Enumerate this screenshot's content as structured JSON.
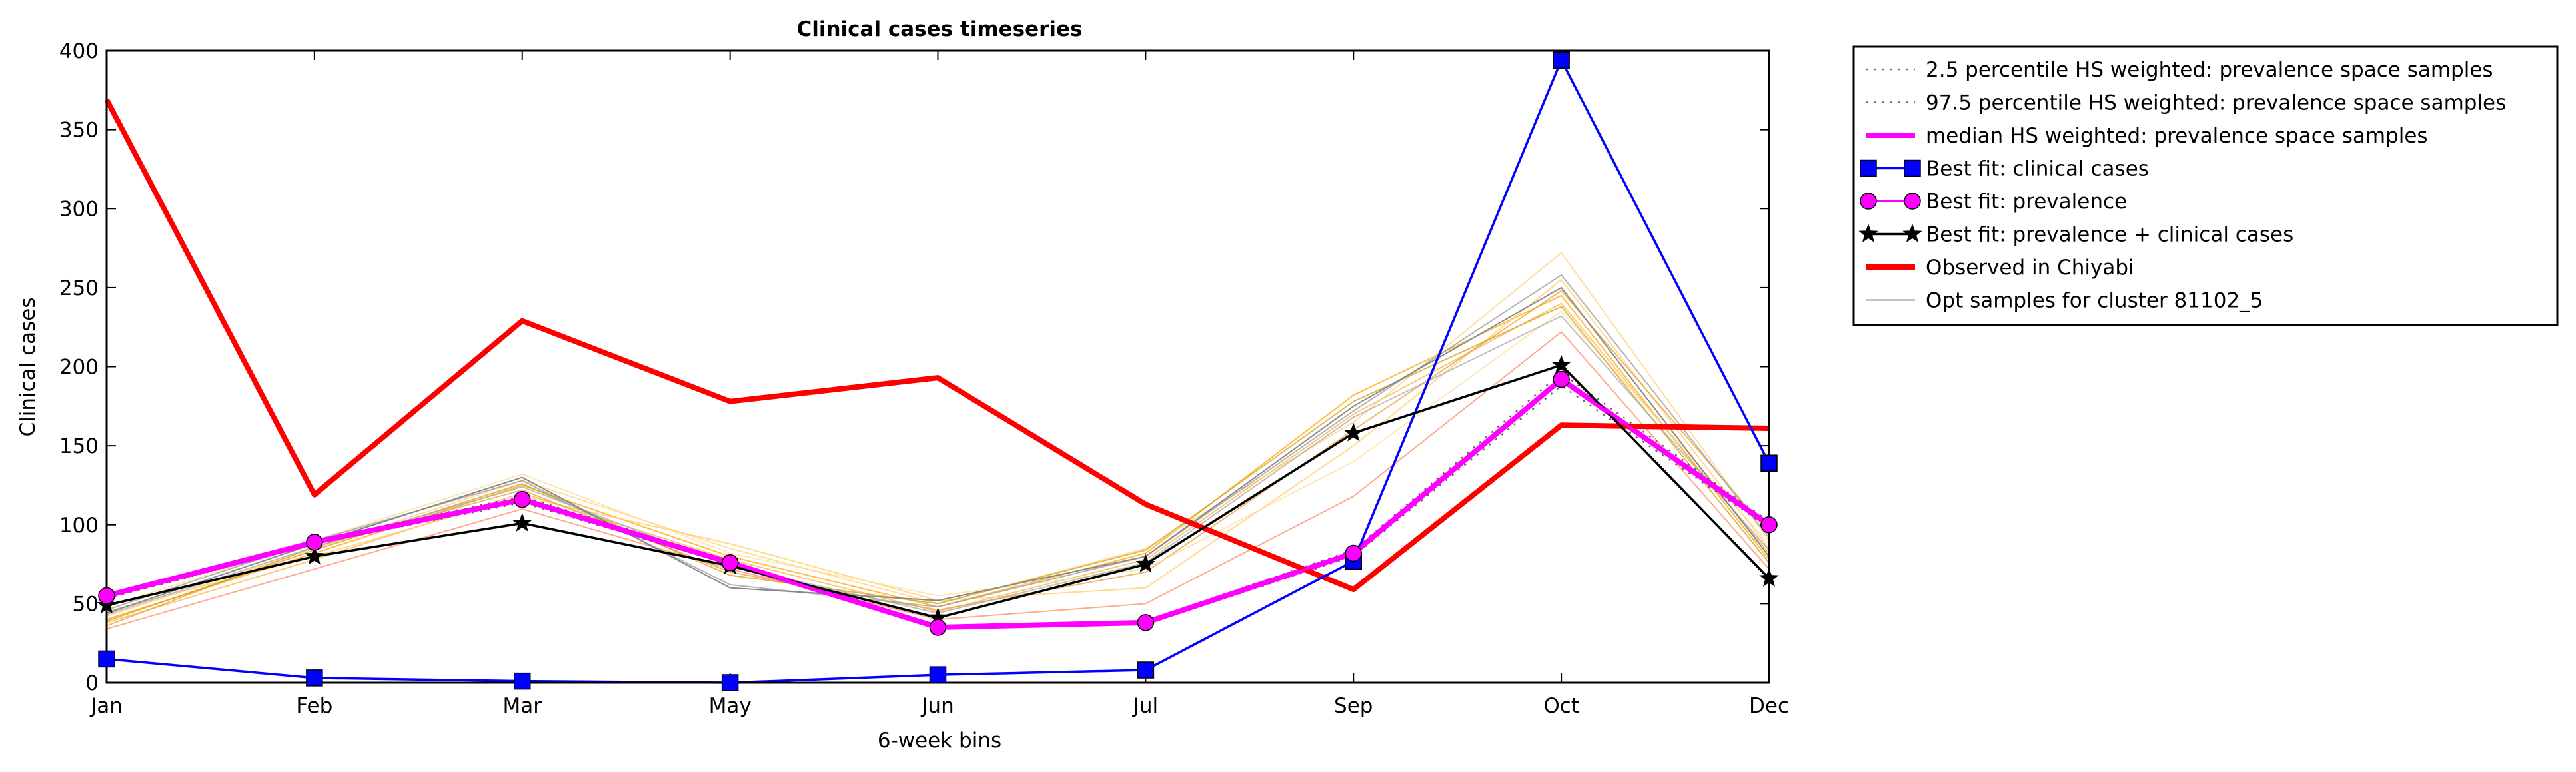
{
  "chart_data": {
    "type": "line",
    "title": "Clinical cases timeseries",
    "xlabel": "6-week bins",
    "ylabel": "Clinical cases",
    "categories": [
      "Jan",
      "Feb",
      "Mar",
      "May",
      "Jun",
      "Jul",
      "Sep",
      "Oct",
      "Dec"
    ],
    "ylim": [
      0,
      400
    ],
    "yticks": [
      0,
      50,
      100,
      150,
      200,
      250,
      300,
      350,
      400
    ],
    "grid": false,
    "legend_position": "outside-right",
    "series": [
      {
        "name": "2.5 percentile HS weighted: prevalence space samples",
        "color": "#666666",
        "style": "dotted",
        "values": [
          53,
          88,
          114,
          75,
          34,
          37,
          80,
          188,
          98
        ]
      },
      {
        "name": "97.5 percentile HS weighted: prevalence space samples",
        "color": "#666666",
        "style": "dotted",
        "values": [
          56,
          90,
          118,
          77,
          36,
          39,
          84,
          196,
          102
        ]
      },
      {
        "name": "median HS weighted: prevalence space samples",
        "color": "#ff00ff",
        "style": "solid-thick",
        "values": [
          55,
          89,
          116,
          76,
          35,
          38,
          82,
          192,
          100
        ]
      },
      {
        "name": "Best fit: clinical cases",
        "color": "#0000ff",
        "marker": "square",
        "values": [
          15,
          3,
          1,
          0,
          5,
          8,
          77,
          394,
          139
        ]
      },
      {
        "name": "Best fit: prevalence",
        "color": "#ff00ff",
        "marker": "circle",
        "values": [
          55,
          89,
          116,
          76,
          35,
          38,
          82,
          192,
          100
        ]
      },
      {
        "name": "Best fit: prevalence + clinical cases",
        "color": "#000000",
        "marker": "star",
        "values": [
          49,
          80,
          101,
          74,
          41,
          75,
          158,
          201,
          66
        ]
      },
      {
        "name": "Observed in Chiyabi",
        "color": "#ff0000",
        "style": "solid-thick",
        "values": [
          369,
          119,
          229,
          178,
          193,
          113,
          59,
          163,
          161
        ]
      },
      {
        "name": "Opt samples for cluster 81102_5",
        "color": "#888888",
        "style": "solid-thin",
        "values": [
          44,
          88,
          130,
          60,
          52,
          80,
          175,
          250,
          80
        ]
      }
    ],
    "sample_lines": [
      {
        "color": "#ffa500",
        "values": [
          40,
          82,
          125,
          80,
          48,
          82,
          182,
          245,
          78
        ]
      },
      {
        "color": "#ffb347",
        "values": [
          38,
          78,
          120,
          78,
          45,
          78,
          170,
          240,
          82
        ]
      },
      {
        "color": "#ffd27f",
        "values": [
          42,
          85,
          128,
          85,
          50,
          85,
          165,
          272,
          90
        ]
      },
      {
        "color": "#ff8c69",
        "values": [
          34,
          72,
          110,
          72,
          40,
          50,
          118,
          222,
          72
        ]
      },
      {
        "color": "#ffcc66",
        "values": [
          45,
          80,
          118,
          88,
          52,
          60,
          150,
          255,
          85
        ]
      },
      {
        "color": "#e6a23c",
        "values": [
          36,
          86,
          122,
          70,
          46,
          70,
          160,
          248,
          95
        ]
      },
      {
        "color": "#ffdd99",
        "values": [
          48,
          90,
          132,
          82,
          55,
          72,
          140,
          235,
          88
        ]
      },
      {
        "color": "#d4a017",
        "values": [
          39,
          84,
          126,
          68,
          50,
          84,
          178,
          238,
          76
        ]
      },
      {
        "color": "#999999",
        "values": [
          46,
          90,
          128,
          62,
          48,
          80,
          172,
          258,
          92
        ]
      },
      {
        "color": "#aaaaaa",
        "values": [
          43,
          86,
          124,
          74,
          44,
          76,
          168,
          232,
          84
        ]
      }
    ]
  }
}
